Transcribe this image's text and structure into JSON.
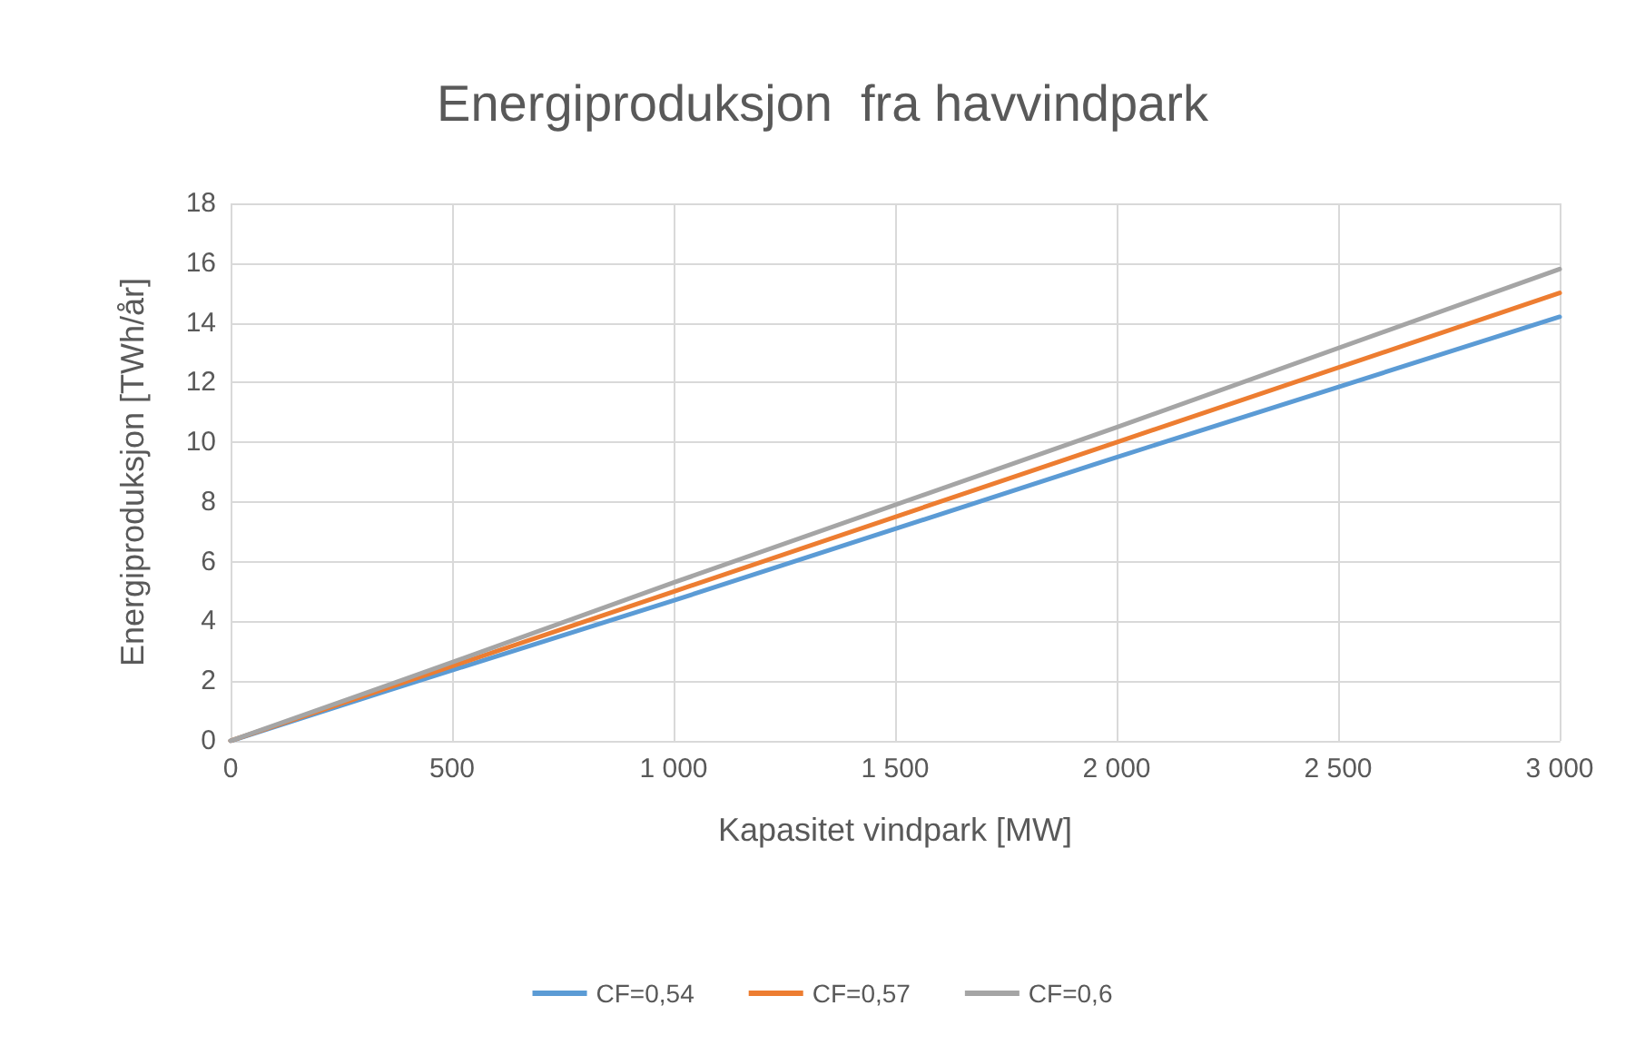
{
  "chart_data": {
    "type": "line",
    "title": "Energiproduksjon  fra havvindpark",
    "xlabel": "Kapasitet vindpark [MW]",
    "ylabel": "Energiproduksjon [TWh/år]",
    "x": [
      0,
      400,
      1000,
      2000,
      3000
    ],
    "series": [
      {
        "name": "CF=0,54",
        "color": "#5b9bd5",
        "values": [
          0,
          1.9,
          4.7,
          9.5,
          14.2
        ]
      },
      {
        "name": "CF=0,57",
        "color": "#ed7d31",
        "values": [
          0,
          2.0,
          5.0,
          10.0,
          15.0
        ]
      },
      {
        "name": "CF=0,6",
        "color": "#a5a5a5",
        "values": [
          0,
          2.1,
          5.3,
          10.5,
          15.8
        ]
      }
    ],
    "xlim": [
      0,
      3000
    ],
    "xticks": [
      0,
      500,
      {
        "value": 1000,
        "label": "1 000"
      },
      {
        "value": 1500,
        "label": "1 500"
      },
      {
        "value": 2000,
        "label": "2 000"
      },
      {
        "value": 2500,
        "label": "2 500"
      },
      {
        "value": 3000,
        "label": "3 000"
      }
    ],
    "ylim": [
      0,
      18
    ],
    "yticks": [
      0,
      2,
      4,
      6,
      8,
      10,
      12,
      14,
      16,
      18
    ],
    "grid": true,
    "legend": "bottom",
    "marker": "none",
    "line_style": "solid"
  }
}
